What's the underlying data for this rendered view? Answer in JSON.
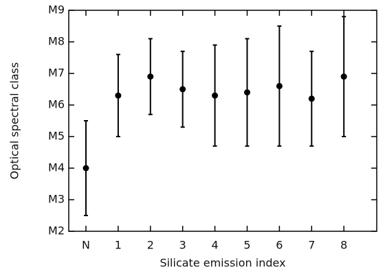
{
  "chart_data": {
    "type": "errorbar",
    "x_label": "Silicate emission index",
    "y_label": "Optical spectral class",
    "categories": [
      "N",
      "1",
      "2",
      "3",
      "4",
      "5",
      "6",
      "7",
      "8"
    ],
    "values": [
      4.0,
      6.3,
      6.9,
      6.5,
      6.3,
      6.4,
      6.6,
      6.2,
      6.9
    ],
    "errors": [
      1.5,
      1.3,
      1.2,
      1.2,
      1.6,
      1.7,
      1.9,
      1.5,
      1.9
    ],
    "color": "#000000",
    "ylim": [
      2,
      9
    ],
    "yticks": [
      {
        "value": 2,
        "label": "M2"
      },
      {
        "value": 3,
        "label": "M3"
      },
      {
        "value": 4,
        "label": "M4"
      },
      {
        "value": 5,
        "label": "M5"
      },
      {
        "value": 6,
        "label": "M6"
      },
      {
        "value": 7,
        "label": "M7"
      },
      {
        "value": 8,
        "label": "M8"
      },
      {
        "value": 9,
        "label": "M9"
      }
    ]
  }
}
